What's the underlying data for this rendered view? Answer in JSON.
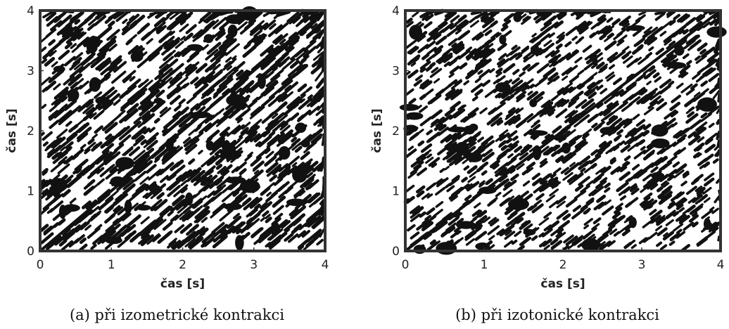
{
  "chart_data": [
    {
      "type": "recurrence_plot",
      "xlim": [
        0,
        4
      ],
      "ylim": [
        0,
        4
      ],
      "xticks": [
        0,
        1,
        2,
        3,
        4
      ],
      "yticks": [
        0,
        1,
        2,
        3,
        4
      ],
      "x_label": "čas [s]",
      "y_label": "čas [s]",
      "caption": "(a) při izometrické kontrakci"
    },
    {
      "type": "recurrence_plot",
      "xlim": [
        0,
        4
      ],
      "ylim": [
        0,
        4
      ],
      "xticks": [
        0,
        1,
        2,
        3,
        4
      ],
      "yticks": [
        0,
        1,
        2,
        3,
        4
      ],
      "x_label": "čas [s]",
      "y_label": "čas [s]",
      "caption": "(b) při izotonické kontrakci"
    }
  ]
}
